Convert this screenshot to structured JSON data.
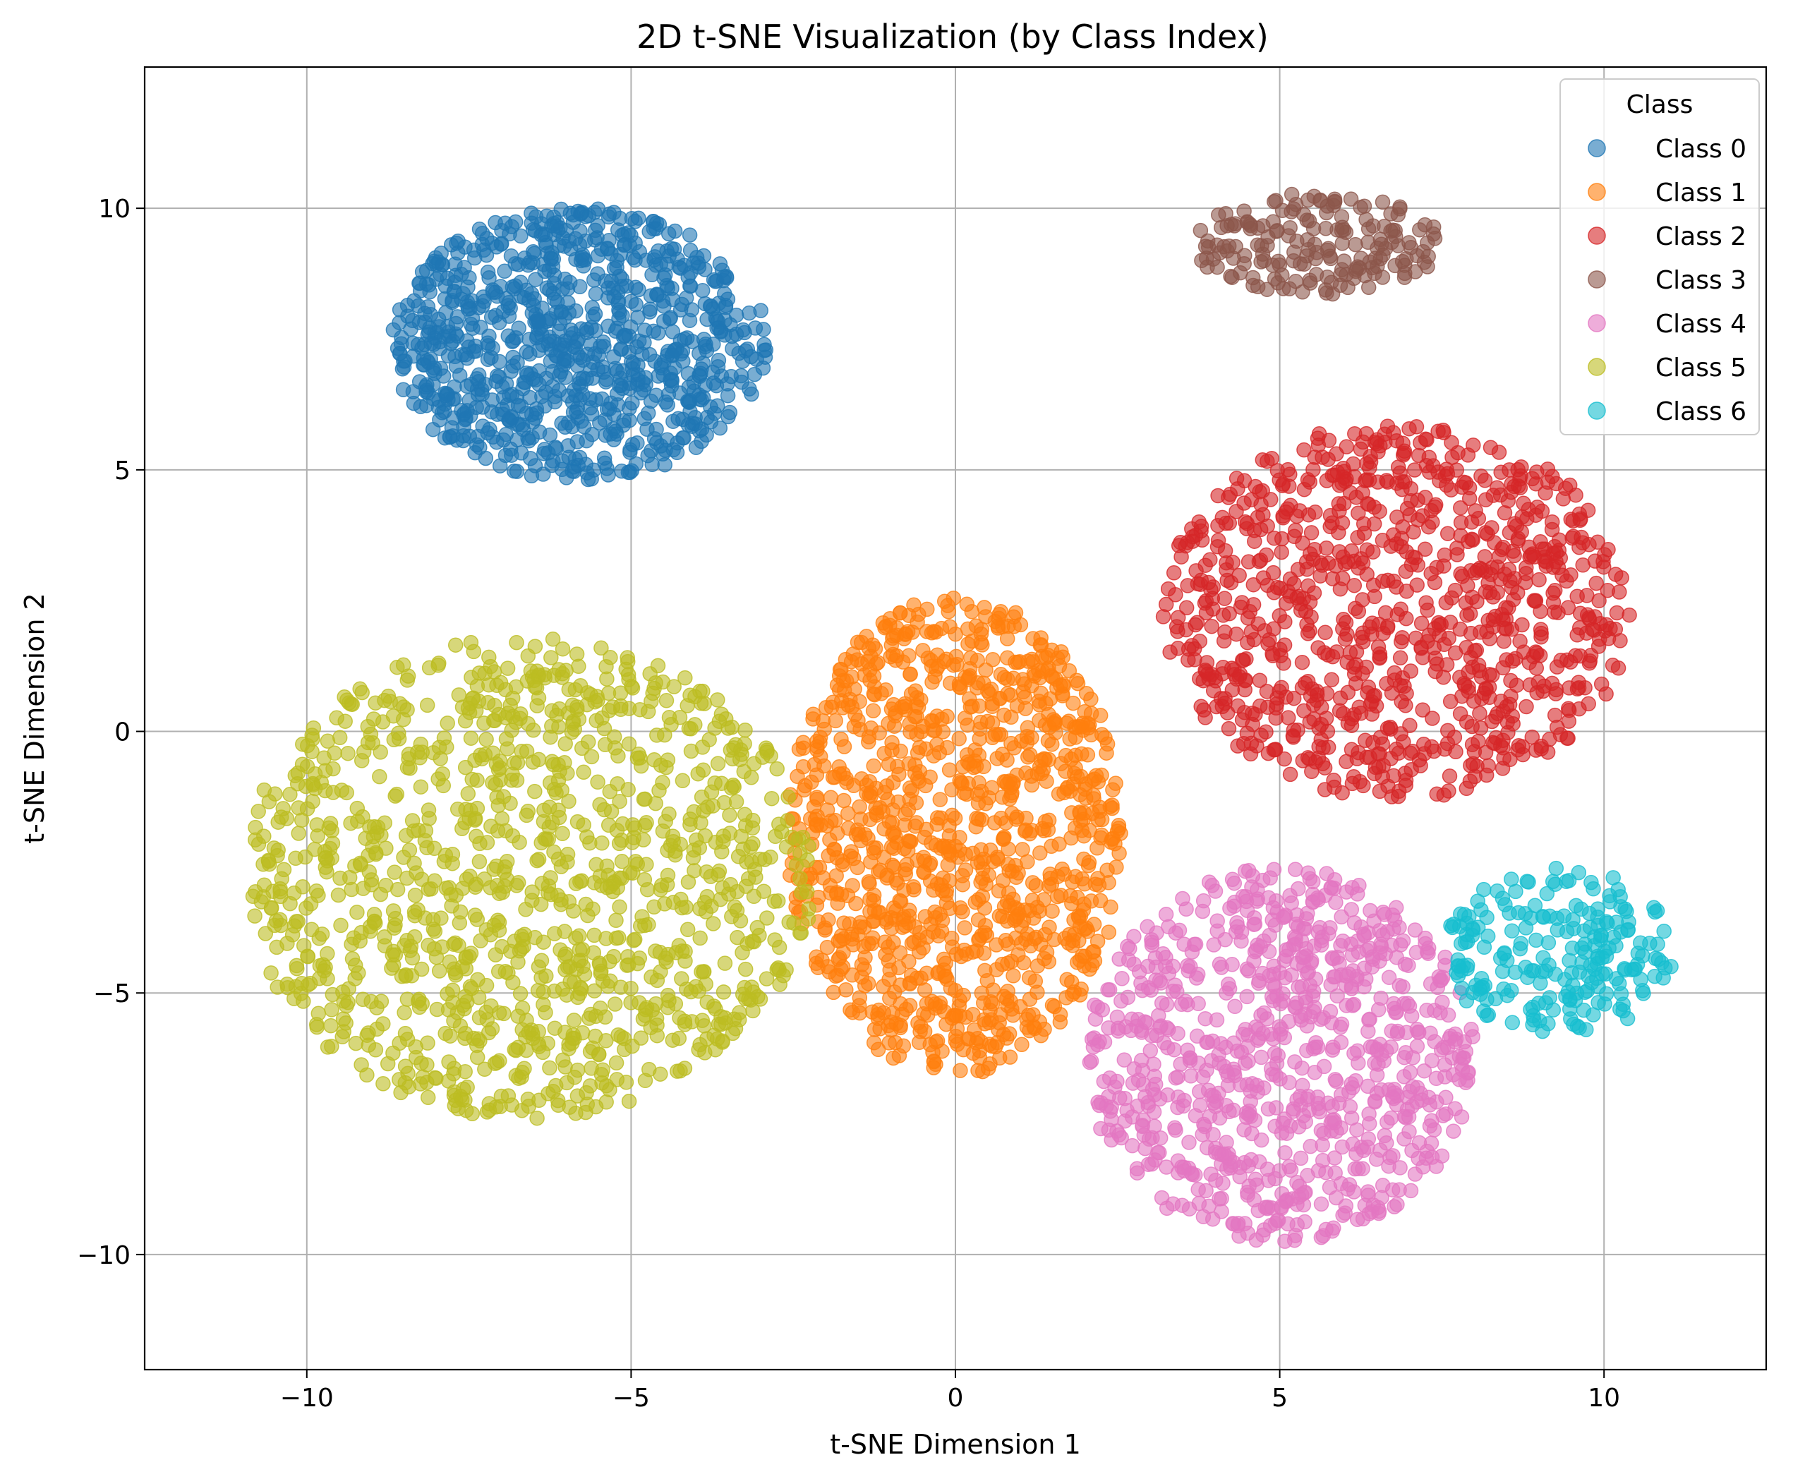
{
  "chart_data": {
    "type": "scatter",
    "title": "2D t-SNE Visualization (by Class Index)",
    "xlabel": "t-SNE Dimension 1",
    "ylabel": "t-SNE Dimension 2",
    "xlim": [
      -12.5,
      12.5
    ],
    "ylim": [
      -12.2,
      12.7
    ],
    "xticks": [
      -10,
      -5,
      0,
      5,
      10
    ],
    "yticks": [
      -10,
      -5,
      0,
      5,
      10
    ],
    "xtick_labels": [
      "−10",
      "−5",
      "0",
      "5",
      "10"
    ],
    "ytick_labels": [
      "−10",
      "−5",
      "0",
      "5",
      "10"
    ],
    "grid": true,
    "legend": {
      "title": "Class",
      "placement": "top-right"
    },
    "series": [
      {
        "name": "Class 0",
        "color": "#1f77b4",
        "center": [
          -5.8,
          7.4
        ],
        "spread": [
          2.9,
          2.6
        ],
        "count": 900
      },
      {
        "name": "Class 1",
        "color": "#ff7f0e",
        "center": [
          0.0,
          -2.0
        ],
        "spread": [
          2.6,
          4.6
        ],
        "count": 1100
      },
      {
        "name": "Class 2",
        "color": "#d62728",
        "center": [
          6.8,
          2.3
        ],
        "spread": [
          3.6,
          3.6
        ],
        "count": 950
      },
      {
        "name": "Class 3",
        "color": "#8c564b",
        "center": [
          5.6,
          9.3
        ],
        "spread": [
          1.9,
          1.0
        ],
        "count": 180
      },
      {
        "name": "Class 4",
        "color": "#e377c2",
        "center": [
          5.0,
          -6.2
        ],
        "spread": [
          3.0,
          3.6
        ],
        "count": 850
      },
      {
        "name": "Class 5",
        "color": "#bcbd22",
        "center": [
          -6.6,
          -2.8
        ],
        "spread": [
          4.4,
          4.6
        ],
        "count": 1200
      },
      {
        "name": "Class 6",
        "color": "#17becf",
        "center": [
          9.3,
          -4.2
        ],
        "spread": [
          1.8,
          1.6
        ],
        "count": 220
      }
    ]
  }
}
